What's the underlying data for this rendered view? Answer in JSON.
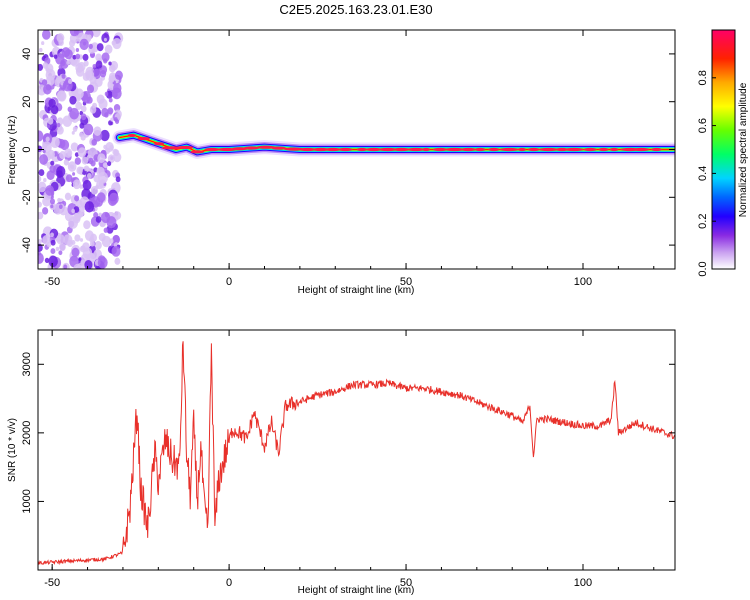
{
  "title": "C2E5.2025.163.23.01.E30",
  "chart_data": [
    {
      "type": "heatmap",
      "xlabel": "Height of straight line (km)",
      "ylabel": "Frequency (Hz)",
      "xlim": [
        -54,
        126
      ],
      "ylim": [
        -50,
        50
      ],
      "xticks": [
        -50,
        0,
        50,
        100
      ],
      "yticks": [
        -40,
        -20,
        0,
        20,
        40
      ],
      "colorbar": {
        "label": "Normalized spectral amplitude",
        "range": [
          0,
          1
        ],
        "ticks": [
          "0.0",
          "0.2",
          "0.4",
          "0.6",
          "0.8"
        ],
        "colormap": [
          "#ffffff",
          "#c9a0f0",
          "#8a2be2",
          "#2200ff",
          "#0066ff",
          "#00d4ff",
          "#00ff66",
          "#66ff00",
          "#ffff00",
          "#ffaa00",
          "#ff2200",
          "#ff0066"
        ]
      },
      "ridge": [
        {
          "x": -31,
          "y": 5
        },
        {
          "x": -27,
          "y": 6
        },
        {
          "x": -23,
          "y": 4
        },
        {
          "x": -19,
          "y": 2
        },
        {
          "x": -15,
          "y": 0
        },
        {
          "x": -12,
          "y": 1
        },
        {
          "x": -9,
          "y": -1
        },
        {
          "x": -5,
          "y": 0
        },
        {
          "x": 0,
          "y": 0
        },
        {
          "x": 10,
          "y": 1
        },
        {
          "x": 20,
          "y": 0
        },
        {
          "x": 126,
          "y": 0
        }
      ],
      "noise_region": [
        -54,
        -31
      ]
    },
    {
      "type": "line",
      "xlabel": "Height of straight line (km)",
      "ylabel": "SNR (10 * v/v)",
      "xlim": [
        -54,
        126
      ],
      "ylim": [
        0,
        3500
      ],
      "xticks": [
        -50,
        0,
        50,
        100
      ],
      "yticks": [
        1000,
        2000,
        3000
      ],
      "line_color": "#e8302a",
      "series": [
        {
          "x": [
            -54,
            -45,
            -35,
            -30,
            -28,
            -26,
            -25,
            -23,
            -21,
            -20,
            -18,
            -16,
            -14,
            -13,
            -12,
            -11,
            -10,
            -9,
            -8,
            -7,
            -6,
            -5,
            -4,
            -3,
            -1,
            1,
            3,
            5,
            7,
            10,
            12,
            14,
            16,
            20,
            25,
            30,
            35,
            40,
            45,
            50,
            55,
            60,
            65,
            70,
            75,
            80,
            83,
            85,
            86,
            87,
            90,
            95,
            100,
            105,
            108,
            109,
            110,
            115,
            120,
            126
          ],
          "y": [
            100,
            130,
            160,
            250,
            900,
            2350,
            1200,
            600,
            1700,
            1300,
            1900,
            1600,
            1500,
            3350,
            1700,
            1100,
            2100,
            1000,
            1800,
            900,
            550,
            3250,
            600,
            1300,
            1700,
            2050,
            2000,
            1900,
            2300,
            1800,
            2150,
            1700,
            2400,
            2450,
            2550,
            2600,
            2700,
            2700,
            2720,
            2650,
            2650,
            2600,
            2550,
            2450,
            2350,
            2250,
            2150,
            2400,
            1650,
            2200,
            2200,
            2150,
            2100,
            2100,
            2200,
            2780,
            2000,
            2150,
            2050,
            1950
          ]
        }
      ]
    }
  ]
}
